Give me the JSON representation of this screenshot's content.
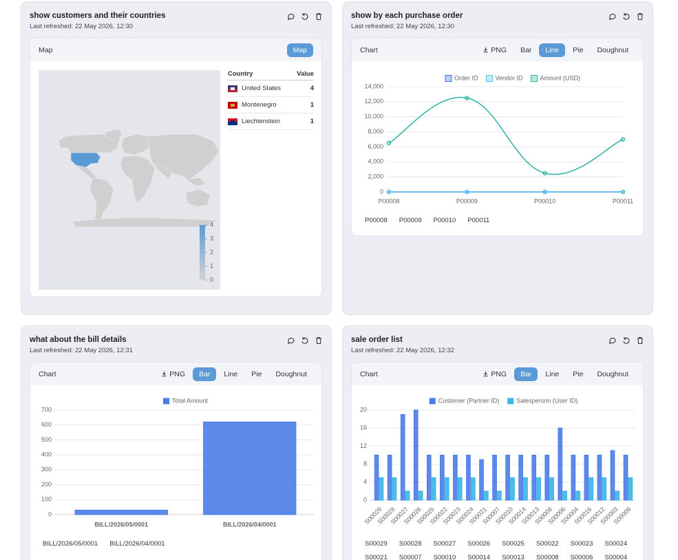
{
  "panels": [
    {
      "title": "show customers and their countries",
      "subtitle": "Last refreshed: 22 May 2026, 12:30",
      "tab_label": "Map",
      "buttons": [
        {
          "label": "Map"
        }
      ],
      "table_headers": [
        "Country",
        "Value"
      ]
    },
    {
      "title": "show by each purchase order",
      "subtitle": "Last refreshed: 22 May 2026, 12:30",
      "tab_label": "Chart",
      "buttons": [
        {
          "label": "PNG",
          "icon": "download"
        },
        {
          "label": "Bar"
        },
        {
          "label": "Line"
        },
        {
          "label": "Pie"
        },
        {
          "label": "Doughnut"
        }
      ]
    },
    {
      "title": "what about the bill details",
      "subtitle": "Last refreshed: 22 May 2026, 12:31",
      "tab_label": "Chart",
      "buttons": [
        {
          "label": "PNG",
          "icon": "download"
        },
        {
          "label": "Bar"
        },
        {
          "label": "Line"
        },
        {
          "label": "Pie"
        },
        {
          "label": "Doughnut"
        }
      ]
    },
    {
      "title": "sale order list",
      "subtitle": "Last refreshed: 22 May 2026, 12:32",
      "tab_label": "Chart",
      "buttons": [
        {
          "label": "PNG",
          "icon": "download"
        },
        {
          "label": "Bar"
        },
        {
          "label": "Line"
        },
        {
          "label": "Pie"
        },
        {
          "label": "Doughnut"
        }
      ]
    }
  ],
  "chart_data": [
    {
      "type": "map",
      "categories": [
        "United States",
        "Montenegro",
        "Liechtenstein"
      ],
      "values": [
        4,
        1,
        1
      ],
      "color": "#5b9bd5",
      "zero_color": "#d3d3d3",
      "legend_ticks": [
        4,
        3,
        2,
        1,
        0
      ]
    },
    {
      "type": "line",
      "categories": [
        "P00008",
        "P00009",
        "P00010",
        "P00011"
      ],
      "series": [
        {
          "name": "Order ID",
          "color": "#3b6fe0",
          "values": [
            0,
            0,
            0,
            0
          ]
        },
        {
          "name": "Vendor ID",
          "color": "#5bc0eb",
          "values": [
            0,
            0,
            0,
            0
          ]
        },
        {
          "name": "Amount (USD)",
          "color": "#2ab3a3",
          "values": [
            6500,
            12500,
            2500,
            7000
          ]
        }
      ],
      "ylim": [
        0,
        14000
      ],
      "yticks": [
        0,
        {
          "value": 2000,
          "label": "2,000"
        },
        {
          "value": 4000,
          "label": "4,000"
        },
        {
          "value": 6000,
          "label": "6,000"
        },
        {
          "value": 8000,
          "label": "8,000"
        },
        {
          "value": 10000,
          "label": "10,000"
        },
        {
          "value": 12000,
          "label": "12,000"
        },
        {
          "value": 14000,
          "label": "14,000"
        }
      ],
      "grid": true,
      "smooth": true
    },
    {
      "type": "bar",
      "categories": [
        "BILL/2026/05/0001",
        "BILL/2026/04/0001"
      ],
      "series": [
        {
          "name": "Total Amount",
          "color": "#4a7ce8",
          "values": [
            30,
            620
          ]
        }
      ],
      "ylim": [
        0,
        700
      ],
      "yticks": [
        0,
        100,
        200,
        300,
        400,
        500,
        600,
        700
      ],
      "grid": true
    },
    {
      "type": "bar",
      "categories": [
        "S00029",
        "S00028",
        "S00027",
        "S00026",
        "S00025",
        "S00022",
        "S00023",
        "S00024",
        "S00021",
        "S00007",
        "S00010",
        "S00014",
        "S00013",
        "S00008",
        "S00006",
        "S00004",
        "S00016",
        "S00012",
        "S00003",
        "S00009"
      ],
      "series": [
        {
          "name": "Customer (Partner ID)",
          "color": "#4a7ce8",
          "values": [
            10,
            10,
            19,
            20,
            10,
            10,
            10,
            10,
            9,
            10,
            10,
            10,
            10,
            10,
            16,
            10,
            10,
            10,
            11,
            10
          ]
        },
        {
          "name": "Salesperson (User ID)",
          "color": "#3ab5e6",
          "values": [
            5,
            5,
            2,
            2,
            5,
            5,
            5,
            5,
            2,
            2,
            5,
            5,
            5,
            5,
            2,
            2,
            5,
            5,
            2,
            5
          ]
        }
      ],
      "ylim": [
        0,
        20
      ],
      "yticks": [
        0,
        4,
        8,
        12,
        16,
        20
      ],
      "grid": true,
      "rotate_labels": true
    }
  ]
}
